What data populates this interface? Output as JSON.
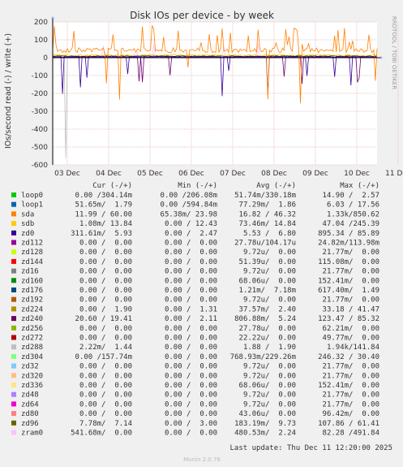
{
  "chart_data": {
    "type": "line",
    "title": "Disk IOs per device - by week",
    "ylabel": "IOs/second read (-) / write (+)",
    "side_label": "RRDTOOL / TOBI OETIKER",
    "ylim": [
      -600,
      200
    ],
    "y_ticks": [
      200,
      100,
      0,
      -100,
      -200,
      -300,
      -400,
      -500,
      -600
    ],
    "x_ticks": [
      "03 Dec",
      "04 Dec",
      "05 Dec",
      "06 Dec",
      "07 Dec",
      "08 Dec",
      "09 Dec",
      "10 Dec",
      "11 Dec"
    ],
    "headers": {
      "cur": "Cur (-/+)",
      "min": "Min (-/+)",
      "avg": "Avg (-/+)",
      "max": "Max (-/+)"
    },
    "series": [
      {
        "name": "loop0",
        "color": "#00cc00",
        "cur": "0.00 /304.14m",
        "min": "0.00 /206.08m",
        "avg": "51.74m/330.18m",
        "max": "14.90 /  2.57"
      },
      {
        "name": "loop1",
        "color": "#0066b3",
        "cur": "51.65m/  1.79",
        "min": "0.00 /594.84m",
        "avg": "77.29m/  1.86",
        "max": "6.03 / 17.56"
      },
      {
        "name": "sda",
        "color": "#ff8000",
        "cur": "11.99 / 60.00",
        "min": "65.38m/ 23.98",
        "avg": "16.82 / 46.32",
        "max": "1.33k/850.62"
      },
      {
        "name": "sdb",
        "color": "#ffcc00",
        "cur": "1.08m/ 13.84",
        "min": "0.00 / 12.43",
        "avg": "73.46m/ 14.84",
        "max": "47.04 /245.39"
      },
      {
        "name": "zd0",
        "color": "#330099",
        "cur": "311.61m/  5.93",
        "min": "0.00 /  2.47",
        "avg": "5.53 /  6.80",
        "max": "895.34 / 85.89"
      },
      {
        "name": "zd112",
        "color": "#990099",
        "cur": "0.00 /  0.00",
        "min": "0.00 /  0.00",
        "avg": "27.78u/104.17u",
        "max": "24.82m/113.98m"
      },
      {
        "name": "zd128",
        "color": "#ccff00",
        "cur": "0.00 /  0.00",
        "min": "0.00 /  0.00",
        "avg": "9.72u/  0.00",
        "max": "21.77m/  0.00"
      },
      {
        "name": "zd144",
        "color": "#ff0000",
        "cur": "0.00 /  0.00",
        "min": "0.00 /  0.00",
        "avg": "51.39u/  0.00",
        "max": "115.08m/  0.00"
      },
      {
        "name": "zd16",
        "color": "#808080",
        "cur": "0.00 /  0.00",
        "min": "0.00 /  0.00",
        "avg": "9.72u/  0.00",
        "max": "21.77m/  0.00"
      },
      {
        "name": "zd160",
        "color": "#008f00",
        "cur": "0.00 /  0.00",
        "min": "0.00 /  0.00",
        "avg": "68.06u/  0.00",
        "max": "152.41m/  0.00"
      },
      {
        "name": "zd176",
        "color": "#00487d",
        "cur": "0.00 /  0.00",
        "min": "0.00 /  0.00",
        "avg": "1.21m/  7.18m",
        "max": "617.40m/  1.49"
      },
      {
        "name": "zd192",
        "color": "#b35a00",
        "cur": "0.00 /  0.00",
        "min": "0.00 /  0.00",
        "avg": "9.72u/  0.00",
        "max": "21.77m/  0.00"
      },
      {
        "name": "zd224",
        "color": "#b38f00",
        "cur": "0.00 /  1.90",
        "min": "0.00 /  1.31",
        "avg": "37.57m/  2.40",
        "max": "33.18 / 41.47"
      },
      {
        "name": "zd240",
        "color": "#6b006b",
        "cur": "20.60 / 19.41",
        "min": "0.00 /  2.11",
        "avg": "806.88m/  5.24",
        "max": "123.47 / 85.32"
      },
      {
        "name": "zd256",
        "color": "#8fb300",
        "cur": "0.00 /  0.00",
        "min": "0.00 /  0.00",
        "avg": "27.78u/  0.00",
        "max": "62.21m/  0.00"
      },
      {
        "name": "zd272",
        "color": "#b30000",
        "cur": "0.00 /  0.00",
        "min": "0.00 /  0.00",
        "avg": "22.22u/  0.00",
        "max": "49.77m/  0.00"
      },
      {
        "name": "zd288",
        "color": "#bebebe",
        "cur": "2.22m/  1.44",
        "min": "0.00 /  0.00",
        "avg": "1.88 /  1.90",
        "max": "1.94k/141.84"
      },
      {
        "name": "zd304",
        "color": "#80ff80",
        "cur": "0.00 /157.74m",
        "min": "0.00 /  0.00",
        "avg": "768.93m/229.26m",
        "max": "246.32 / 30.40"
      },
      {
        "name": "zd32",
        "color": "#80c9ff",
        "cur": "0.00 /  0.00",
        "min": "0.00 /  0.00",
        "avg": "9.72u/  0.00",
        "max": "21.77m/  0.00"
      },
      {
        "name": "zd320",
        "color": "#ffc080",
        "cur": "0.00 /  0.00",
        "min": "0.00 /  0.00",
        "avg": "9.72u/  0.00",
        "max": "21.77m/  0.00"
      },
      {
        "name": "zd336",
        "color": "#ffe680",
        "cur": "0.00 /  0.00",
        "min": "0.00 /  0.00",
        "avg": "68.06u/  0.00",
        "max": "152.41m/  0.00"
      },
      {
        "name": "zd48",
        "color": "#aa80ff",
        "cur": "0.00 /  0.00",
        "min": "0.00 /  0.00",
        "avg": "9.72u/  0.00",
        "max": "21.77m/  0.00"
      },
      {
        "name": "zd64",
        "color": "#ee00cc",
        "cur": "0.00 /  0.00",
        "min": "0.00 /  0.00",
        "avg": "9.72u/  0.00",
        "max": "21.77m/  0.00"
      },
      {
        "name": "zd80",
        "color": "#ff8080",
        "cur": "0.00 /  0.00",
        "min": "0.00 /  0.00",
        "avg": "43.06u/  0.00",
        "max": "96.42m/  0.00"
      },
      {
        "name": "zd96",
        "color": "#666600",
        "cur": "7.78m/  7.14",
        "min": "0.00 /  3.00",
        "avg": "183.19m/  9.73",
        "max": "107.86 / 61.41"
      },
      {
        "name": "zram0",
        "color": "#ffbfff",
        "cur": "541.68m/  0.00",
        "min": "0.00 /  0.00",
        "avg": "480.53m/  2.24",
        "max": "82.28 /491.84"
      }
    ],
    "last_update": "Last update: Thu Dec 11 12:20:00 2025",
    "footer": "Munin 2.0.76"
  }
}
